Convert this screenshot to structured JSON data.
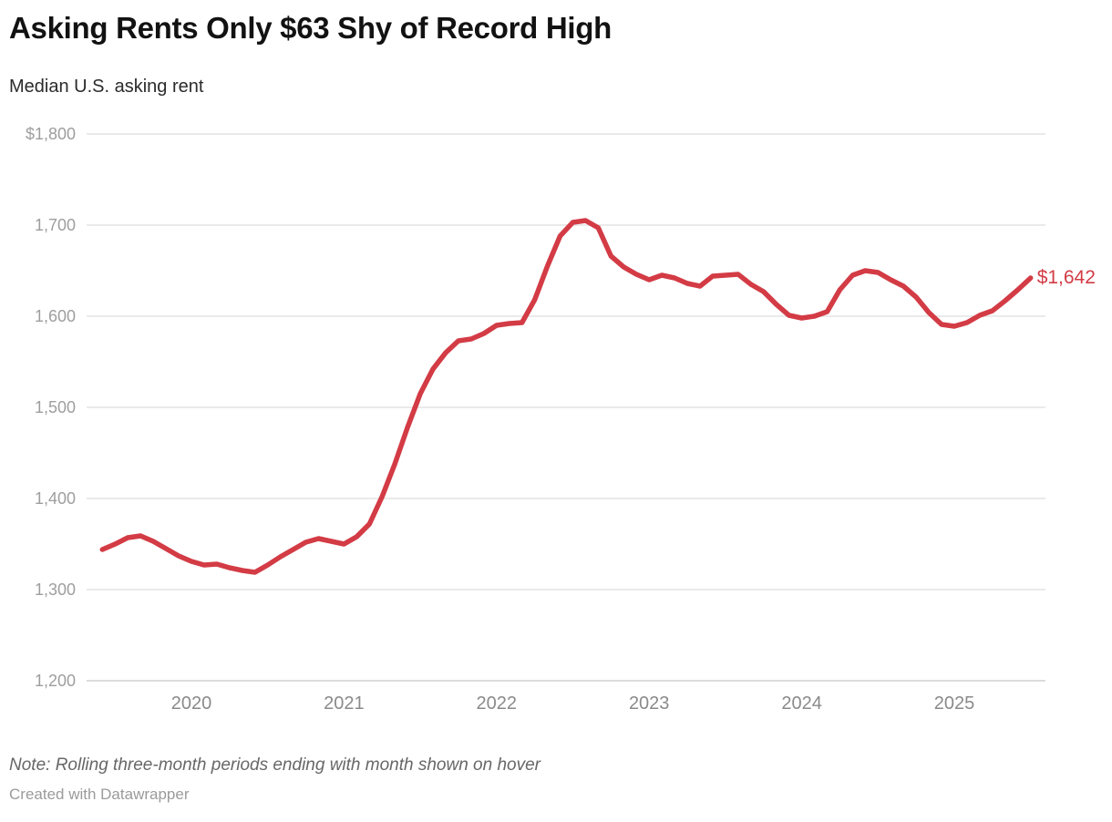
{
  "header": {
    "title": "Asking Rents Only $63 Shy of Record High",
    "subtitle": "Median U.S. asking rent"
  },
  "footer": {
    "note": "Note: Rolling three-month periods ending with month shown on hover",
    "credit": "Created with Datawrapper"
  },
  "chart_data": {
    "type": "line",
    "title": "Asking Rents Only $63 Shy of Record High",
    "subtitle": "Median U.S. asking rent",
    "series_name": "Median U.S. asking rent",
    "x": [
      "2019-06",
      "2019-07",
      "2019-08",
      "2019-09",
      "2019-10",
      "2019-11",
      "2019-12",
      "2020-01",
      "2020-02",
      "2020-03",
      "2020-04",
      "2020-05",
      "2020-06",
      "2020-07",
      "2020-08",
      "2020-09",
      "2020-10",
      "2020-11",
      "2020-12",
      "2021-01",
      "2021-02",
      "2021-03",
      "2021-04",
      "2021-05",
      "2021-06",
      "2021-07",
      "2021-08",
      "2021-09",
      "2021-10",
      "2021-11",
      "2021-12",
      "2022-01",
      "2022-02",
      "2022-03",
      "2022-04",
      "2022-05",
      "2022-06",
      "2022-07",
      "2022-08",
      "2022-09",
      "2022-10",
      "2022-11",
      "2022-12",
      "2023-01",
      "2023-02",
      "2023-03",
      "2023-04",
      "2023-05",
      "2023-06",
      "2023-07",
      "2023-08",
      "2023-09",
      "2023-10",
      "2023-11",
      "2023-12",
      "2024-01",
      "2024-02",
      "2024-03",
      "2024-04",
      "2024-05",
      "2024-06",
      "2024-07",
      "2024-08",
      "2024-09",
      "2024-10",
      "2024-11",
      "2024-12",
      "2025-01",
      "2025-02",
      "2025-03",
      "2025-04",
      "2025-05",
      "2025-06",
      "2025-07"
    ],
    "values": [
      1344,
      1350,
      1357,
      1359,
      1353,
      1345,
      1337,
      1331,
      1327,
      1328,
      1324,
      1321,
      1319,
      1327,
      1336,
      1344,
      1352,
      1356,
      1353,
      1350,
      1358,
      1372,
      1402,
      1438,
      1478,
      1515,
      1542,
      1560,
      1573,
      1575,
      1581,
      1590,
      1592,
      1593,
      1618,
      1655,
      1688,
      1703,
      1705,
      1697,
      1666,
      1654,
      1646,
      1640,
      1645,
      1642,
      1636,
      1633,
      1644,
      1645,
      1646,
      1635,
      1627,
      1613,
      1601,
      1598,
      1600,
      1605,
      1629,
      1645,
      1650,
      1648,
      1640,
      1633,
      1621,
      1604,
      1591,
      1589,
      1593,
      1601,
      1606,
      1617,
      1629,
      1642
    ],
    "ylim": [
      1200,
      1800
    ],
    "y_ticks": [
      {
        "value": 1800,
        "label": "$1,800"
      },
      {
        "value": 1700,
        "label": "1,700"
      },
      {
        "value": 1600,
        "label": "1,600"
      },
      {
        "value": 1500,
        "label": "1,500"
      },
      {
        "value": 1400,
        "label": "1,400"
      },
      {
        "value": 1300,
        "label": "1,300"
      },
      {
        "value": 1200,
        "label": "1,200"
      }
    ],
    "x_ticks": [
      {
        "year": "2020",
        "label": "2020"
      },
      {
        "year": "2021",
        "label": "2021"
      },
      {
        "year": "2022",
        "label": "2022"
      },
      {
        "year": "2023",
        "label": "2023"
      },
      {
        "year": "2024",
        "label": "2024"
      },
      {
        "year": "2025",
        "label": "2025"
      }
    ],
    "grid": true,
    "legend": "none",
    "line_color": "#d33b45",
    "end_label": "$1,642",
    "latest_value": 1642,
    "record_high": 1705
  }
}
